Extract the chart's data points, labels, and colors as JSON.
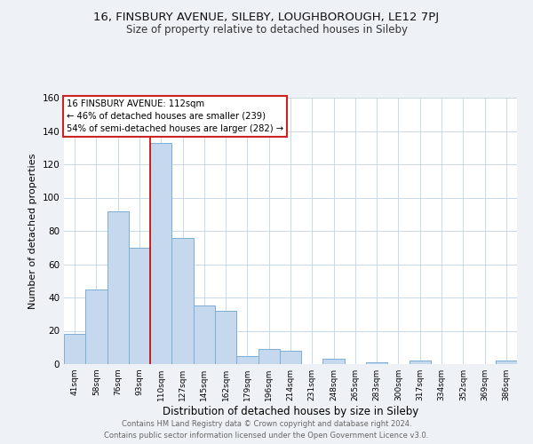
{
  "title": "16, FINSBURY AVENUE, SILEBY, LOUGHBOROUGH, LE12 7PJ",
  "subtitle": "Size of property relative to detached houses in Sileby",
  "bar_labels": [
    "41sqm",
    "58sqm",
    "76sqm",
    "93sqm",
    "110sqm",
    "127sqm",
    "145sqm",
    "162sqm",
    "179sqm",
    "196sqm",
    "214sqm",
    "231sqm",
    "248sqm",
    "265sqm",
    "283sqm",
    "300sqm",
    "317sqm",
    "334sqm",
    "352sqm",
    "369sqm",
    "386sqm"
  ],
  "bar_values": [
    18,
    45,
    92,
    70,
    133,
    76,
    35,
    32,
    5,
    9,
    8,
    0,
    3,
    0,
    1,
    0,
    2,
    0,
    0,
    0,
    2
  ],
  "bar_color": "#c5d8ed",
  "bar_edge_color": "#7bafd4",
  "xlabel": "Distribution of detached houses by size in Sileby",
  "ylabel": "Number of detached properties",
  "ylim": [
    0,
    160
  ],
  "yticks": [
    0,
    20,
    40,
    60,
    80,
    100,
    120,
    140,
    160
  ],
  "vline_x_index": 4,
  "vline_color": "#cc0000",
  "annotation_title": "16 FINSBURY AVENUE: 112sqm",
  "annotation_line1": "← 46% of detached houses are smaller (239)",
  "annotation_line2": "54% of semi-detached houses are larger (282) →",
  "footer_line1": "Contains HM Land Registry data © Crown copyright and database right 2024.",
  "footer_line2": "Contains public sector information licensed under the Open Government Licence v3.0.",
  "background_color": "#eef2f7",
  "plot_bg_color": "#ffffff",
  "grid_color": "#c8d8e8"
}
